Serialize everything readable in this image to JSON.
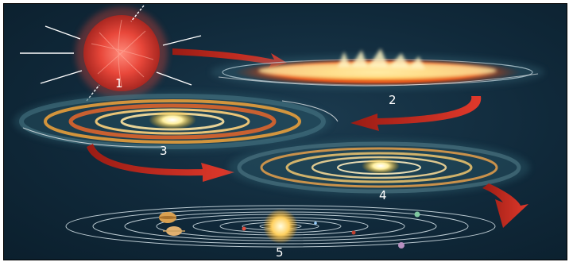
{
  "figure": {
    "stages": [
      {
        "label": "1"
      },
      {
        "label": "2"
      },
      {
        "label": "3"
      },
      {
        "label": "4"
      },
      {
        "label": "5"
      }
    ]
  }
}
